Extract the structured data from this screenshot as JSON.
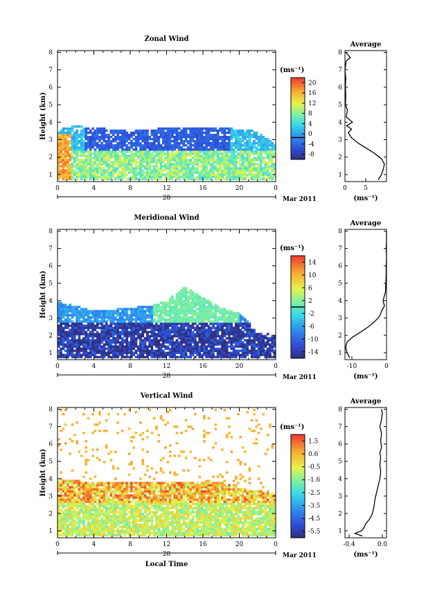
{
  "figure": {
    "xlabel": "Local Time",
    "ylabel": "Height (km)",
    "date_label": "Mar 2011",
    "day_label": "28",
    "unit_label": "(ms⁻¹)",
    "profile_unit_label": "(ms⁻¹)",
    "profile_title": "Average"
  },
  "chart_data": [
    {
      "type": "heatmap",
      "title": "Zonal Wind",
      "x_ticks": [
        "0",
        "4",
        "8",
        "12",
        "16",
        "20",
        "0"
      ],
      "xlim": [
        0,
        24
      ],
      "y_ticks": [
        "1",
        "2",
        "3",
        "4",
        "5",
        "6",
        "7",
        "8"
      ],
      "ylim": [
        0.6,
        8.1
      ],
      "colorbar": {
        "range": [
          -8,
          22
        ],
        "ticks": [
          "20",
          "16",
          "12",
          "8",
          "4",
          "0",
          "-4",
          "-8"
        ],
        "contour_level": 0
      },
      "field_summary": {
        "echo_top_km": [
          3.6,
          3.8,
          3.7,
          3.6,
          3.5,
          3.6,
          3.7,
          3.7,
          3.7,
          3.7,
          3.6,
          3.5,
          2.7
        ],
        "echo_top_times_h": [
          0,
          2,
          4,
          6,
          8,
          10,
          12,
          14,
          16,
          18,
          20,
          22,
          24
        ],
        "upper_layer": {
          "value": -3,
          "t_range": [
            3,
            19
          ],
          "z_range": [
            2.4,
            3.8
          ]
        },
        "lower_layer": {
          "value": 9,
          "t_range": [
            1,
            24
          ],
          "z_range": [
            0.7,
            2.4
          ]
        },
        "early_morning_max": {
          "value": 20,
          "t_range": [
            0,
            1.5
          ],
          "z_range": [
            0.7,
            3.4
          ]
        }
      },
      "profile": {
        "xlim": [
          0,
          10
        ],
        "x_ticks": [
          "0",
          "5"
        ],
        "height_km": [
          0.7,
          1.0,
          1.3,
          1.6,
          1.9,
          2.2,
          2.5,
          2.8,
          3.1,
          3.4,
          3.6,
          3.8,
          4.0,
          4.3,
          4.7,
          5.0,
          5.5,
          6.0,
          6.5,
          7.0,
          7.5,
          7.7,
          8.0
        ],
        "values": [
          8.0,
          8.8,
          9.2,
          9.5,
          8.8,
          7.2,
          5.2,
          3.2,
          1.6,
          0.8,
          1.6,
          0.4,
          1.8,
          0.3,
          0.6,
          0.1,
          0.2,
          0.1,
          0.2,
          0.0,
          0.3,
          1.3,
          0.2
        ]
      }
    },
    {
      "type": "heatmap",
      "title": "Meridional Wind",
      "x_ticks": [
        "0",
        "4",
        "8",
        "12",
        "16",
        "20",
        "0"
      ],
      "xlim": [
        0,
        24
      ],
      "y_ticks": [
        "1",
        "2",
        "3",
        "4",
        "5",
        "6",
        "7",
        "8"
      ],
      "ylim": [
        0.6,
        8.1
      ],
      "colorbar": {
        "range": [
          -16,
          16
        ],
        "ticks": [
          "14",
          "10",
          "6",
          "2",
          "-2",
          "-6",
          "-10",
          "-14"
        ],
        "contour_level": 0
      },
      "field_summary": {
        "echo_top_km": [
          4.0,
          3.7,
          3.4,
          3.5,
          3.6,
          3.7,
          4.0,
          4.8,
          4.2,
          3.6,
          3.3,
          2.2,
          2.0
        ],
        "echo_top_times_h": [
          0,
          2,
          4,
          6,
          8,
          10,
          12,
          14,
          16,
          18,
          20,
          22,
          24
        ],
        "upper_layer": {
          "value": 1,
          "t_range": [
            10.5,
            20
          ],
          "z_range": [
            2.8,
            4.3
          ]
        },
        "lower_layer": {
          "value": -14,
          "t_range": [
            0,
            24
          ],
          "z_range": [
            0.7,
            2.8
          ]
        }
      },
      "profile": {
        "xlim": [
          -12,
          0
        ],
        "x_ticks": [
          "-10",
          "0"
        ],
        "height_km": [
          0.7,
          1.0,
          1.3,
          1.6,
          1.9,
          2.2,
          2.5,
          2.8,
          3.1,
          3.4,
          3.7,
          4.0,
          4.5,
          5.0,
          5.5,
          6.0,
          6.5,
          7.0,
          7.5,
          8.0
        ],
        "values": [
          -10.6,
          -11.4,
          -11.8,
          -11.4,
          -9.8,
          -7.4,
          -5.2,
          -3.4,
          -2.0,
          -1.4,
          -0.6,
          -1.0,
          -0.3,
          -0.2,
          -0.1,
          -0.1,
          0.0,
          -0.1,
          0.0,
          0.0
        ]
      }
    },
    {
      "type": "heatmap",
      "title": "Vertical Wind",
      "x_ticks": [
        "0",
        "4",
        "8",
        "12",
        "16",
        "20",
        "0"
      ],
      "xlim": [
        0,
        24
      ],
      "y_ticks": [
        "1",
        "2",
        "3",
        "4",
        "5",
        "6",
        "7",
        "8"
      ],
      "ylim": [
        0.6,
        8.1
      ],
      "colorbar": {
        "range": [
          -6.0,
          2.0
        ],
        "ticks": [
          "1.5",
          "0.6",
          "-0.5",
          "-1.6",
          "-2.5",
          "-3.5",
          "-4.5",
          "-5.5"
        ],
        "contour_level": null
      },
      "field_summary": {
        "echo_top_km": [
          3.9,
          3.9,
          3.8,
          3.8,
          3.8,
          3.8,
          3.8,
          3.8,
          3.8,
          3.8,
          3.5,
          3.3,
          3.2
        ],
        "echo_top_times_h": [
          0,
          2,
          4,
          6,
          8,
          10,
          12,
          14,
          16,
          18,
          20,
          22,
          24
        ],
        "upper_layer": {
          "value": 0.4,
          "t_range": [
            0,
            24
          ],
          "z_range": [
            2.6,
            3.9
          ]
        },
        "lower_layer": {
          "value": -0.8,
          "t_range": [
            0,
            24
          ],
          "z_range": [
            0.7,
            2.6
          ]
        },
        "scattered_aloft": {
          "value": 0.3,
          "t_range": [
            0,
            24
          ],
          "z_range": [
            3.9,
            8.0
          ]
        }
      },
      "profile": {
        "xlim": [
          -0.45,
          0.05
        ],
        "x_ticks": [
          "-0.4",
          "0.0"
        ],
        "height_km": [
          0.7,
          0.85,
          1.0,
          1.2,
          1.4,
          1.7,
          2.0,
          2.4,
          2.8,
          3.2,
          3.6,
          4.0,
          4.4,
          4.8,
          5.2,
          5.5,
          5.8,
          6.2,
          6.6,
          7.0,
          7.4,
          7.8,
          8.0
        ],
        "values": [
          -0.24,
          -0.33,
          -0.25,
          -0.22,
          -0.2,
          -0.15,
          -0.12,
          -0.1,
          -0.09,
          -0.07,
          -0.05,
          -0.03,
          -0.02,
          -0.03,
          -0.02,
          -0.03,
          -0.01,
          -0.02,
          -0.01,
          -0.03,
          -0.01,
          0.0,
          -0.01
        ]
      }
    }
  ]
}
